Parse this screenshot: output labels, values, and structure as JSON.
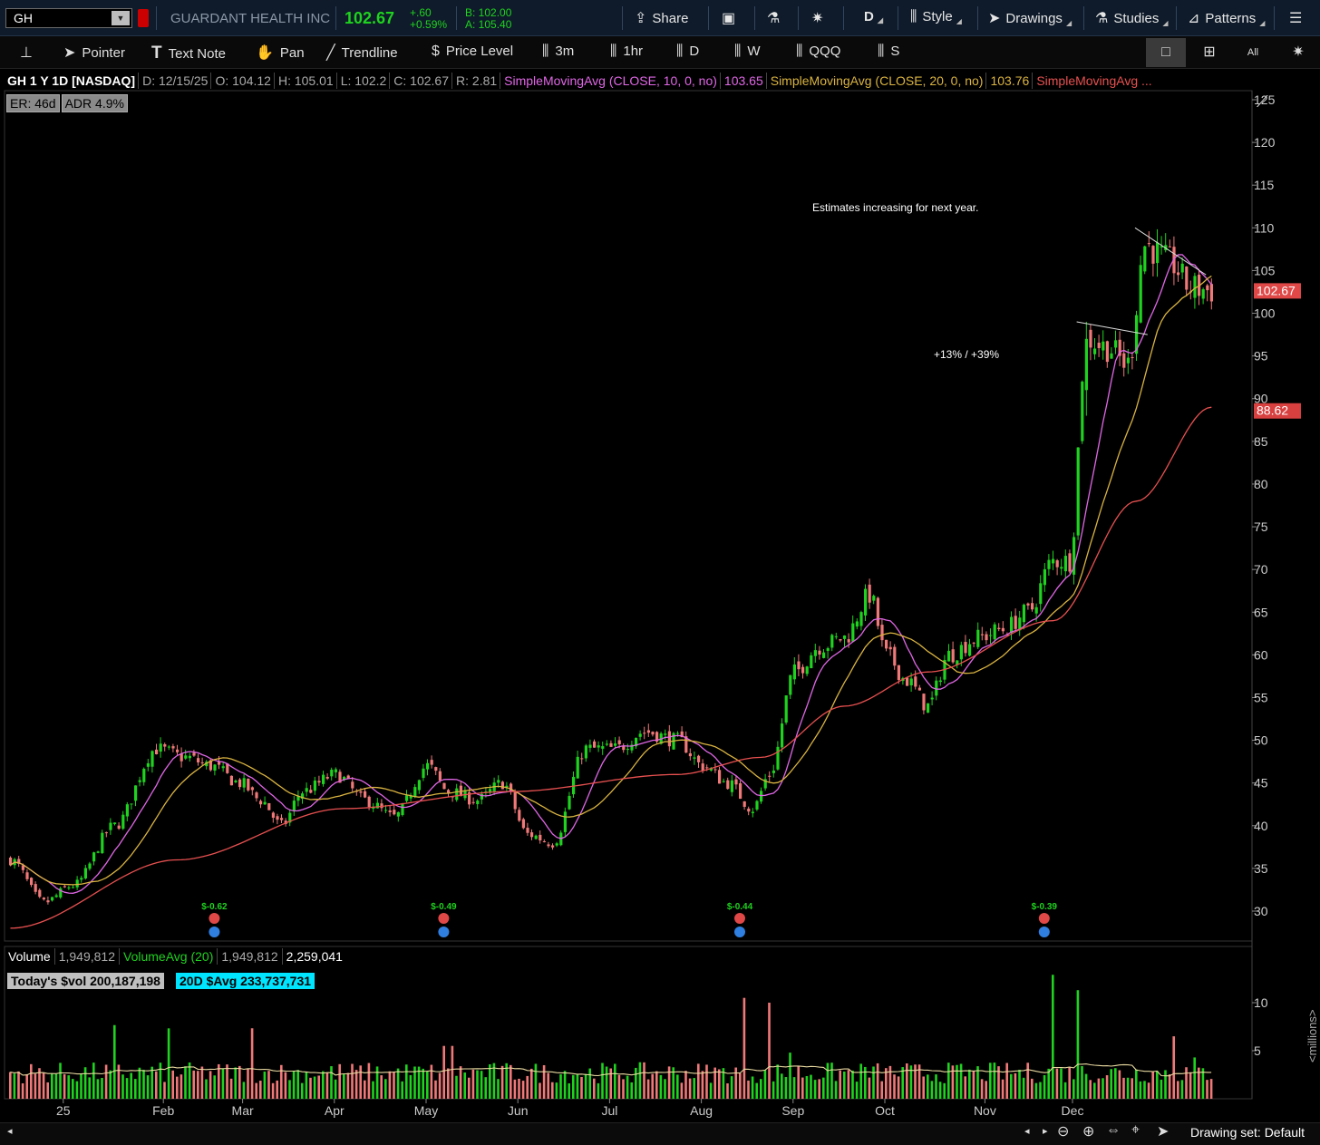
{
  "topbar": {
    "symbol": "GH",
    "company": "GUARDANT HEALTH INC",
    "last": "102.67",
    "change": "+.60",
    "change_pct": "+0.59%",
    "bid": "B: 102.00",
    "ask": "A: 105.40",
    "share": "Share",
    "period": "D",
    "style": "Style",
    "drawings": "Drawings",
    "studies": "Studies",
    "patterns": "Patterns"
  },
  "toolbar2": {
    "pointer": "Pointer",
    "text_note": "Text Note",
    "pan": "Pan",
    "trendline": "Trendline",
    "price_level": "Price Level",
    "p3m": "3m",
    "p1hr": "1hr",
    "pd": "D",
    "pw": "W",
    "qqq": "QQQ",
    "s": "S",
    "all_label": "All"
  },
  "header": {
    "title": "GH 1 Y 1D [NASDAQ]",
    "date": "D: 12/15/25",
    "open": "O: 104.12",
    "high": "H: 105.01",
    "low": "L: 102.2",
    "close": "C: 102.67",
    "range": "R: 2.81",
    "sma10_label": "SimpleMovingAvg (CLOSE, 10, 0, no)",
    "sma10_value": "103.65",
    "sma20_label": "SimpleMovingAvg (CLOSE, 20, 0, no)",
    "sma20_value": "103.76",
    "sma50_label": "SimpleMovingAvg ...",
    "er": "ER: 46d",
    "adr": "ADR 4.9%"
  },
  "colors": {
    "up": "#1fd21f",
    "down": "#f07878",
    "sma10": "#e066e6",
    "sma20": "#d9b340",
    "sma50": "#e85050",
    "volavg": "#e8d9a0"
  },
  "chart_data": {
    "type": "candlestick",
    "ylim": [
      27,
      127
    ],
    "y_ticks": [
      30,
      35,
      40,
      45,
      50,
      55,
      60,
      65,
      70,
      75,
      80,
      85,
      90,
      95,
      100,
      105,
      110,
      115,
      120,
      125
    ],
    "x_month_labels": [
      "25",
      "Feb",
      "Mar",
      "Apr",
      "May",
      "Jun",
      "Jul",
      "Aug",
      "Sep",
      "Oct",
      "Nov",
      "Dec"
    ],
    "last_price_tag": "102.67",
    "sma50_tag": "88.62",
    "annotations": [
      "Estimates increasing for next year.",
      "+13% / +39%"
    ],
    "earnings": [
      "$-0.62",
      "$-0.49",
      "$-0.44",
      "$-0.39"
    ],
    "close_path_anchors": [
      [
        0,
        36
      ],
      [
        8,
        31
      ],
      [
        15,
        33
      ],
      [
        25,
        40
      ],
      [
        35,
        49
      ],
      [
        42,
        48
      ],
      [
        48,
        47
      ],
      [
        55,
        45
      ],
      [
        60,
        43
      ],
      [
        65,
        40
      ],
      [
        70,
        44
      ],
      [
        78,
        46
      ],
      [
        85,
        43
      ],
      [
        92,
        41
      ],
      [
        100,
        47
      ],
      [
        105,
        44
      ],
      [
        112,
        43
      ],
      [
        118,
        45
      ],
      [
        124,
        39
      ],
      [
        130,
        38
      ],
      [
        138,
        49
      ],
      [
        145,
        49
      ],
      [
        152,
        51
      ],
      [
        160,
        50
      ],
      [
        166,
        47
      ],
      [
        172,
        45
      ],
      [
        178,
        42
      ],
      [
        182,
        46
      ],
      [
        188,
        58
      ],
      [
        194,
        61
      ],
      [
        200,
        62
      ],
      [
        206,
        67
      ],
      [
        210,
        60
      ],
      [
        215,
        57
      ],
      [
        220,
        54
      ],
      [
        225,
        60
      ],
      [
        232,
        62
      ],
      [
        238,
        63
      ],
      [
        244,
        65
      ],
      [
        250,
        71
      ],
      [
        254,
        71
      ],
      [
        258,
        97
      ],
      [
        263,
        96
      ],
      [
        268,
        94
      ],
      [
        272,
        108
      ],
      [
        278,
        106
      ],
      [
        283,
        103
      ],
      [
        288,
        102.67
      ]
    ],
    "sma50_anchors": [
      [
        0,
        28
      ],
      [
        40,
        36
      ],
      [
        80,
        42
      ],
      [
        120,
        44
      ],
      [
        160,
        46
      ],
      [
        180,
        48
      ],
      [
        200,
        54
      ],
      [
        220,
        58
      ],
      [
        250,
        64
      ],
      [
        270,
        78
      ],
      [
        288,
        89
      ]
    ]
  },
  "volume": {
    "label": "Volume",
    "value": "1,949,812",
    "avg_label": "VolumeAvg (20)",
    "avg_value": "1,949,812",
    "third_value": "2,259,041",
    "today_dollar": "Today's $vol 200,187,198",
    "avg_dollar": "20D $Avg 233,737,731",
    "unit": "<millions>",
    "y_ticks": [
      5,
      10
    ]
  },
  "bottombar": {
    "drawing_set": "Drawing set: Default"
  }
}
